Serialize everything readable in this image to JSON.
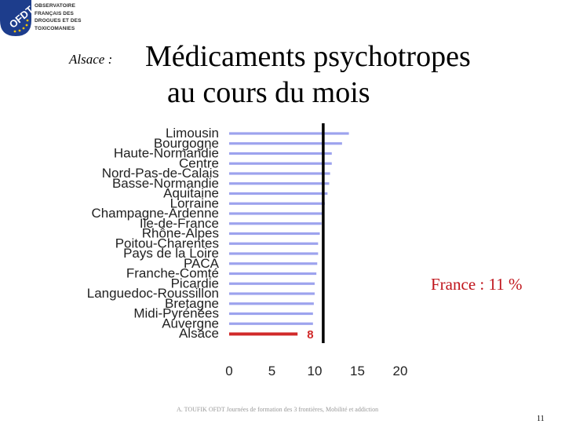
{
  "logo": {
    "badge_text": "OFDT",
    "lines": [
      "OBSERVATOIRE",
      "FRANÇAIS DES",
      "DROGUES ET DES",
      "TOXICOMANIES"
    ]
  },
  "region_label": "Alsace :",
  "title": {
    "line1": "Médicaments psychotropes",
    "line2": "au cours du mois"
  },
  "annotation": "France : 11 %",
  "footer_credit": "A. TOUFIK OFDT Journées de formation des 3 frontières, Mobilité et addiction",
  "page_number": "11",
  "colors": {
    "bar": "#9da3ee",
    "highlight": "#d12a2a",
    "reference_line": "#000000",
    "annotation": "#c0151c"
  },
  "chart_data": {
    "type": "bar",
    "orientation": "horizontal",
    "categories": [
      "Limousin",
      "Bourgogne",
      "Haute-Normandie",
      "Centre",
      "Nord-Pas-de-Calais",
      "Basse-Normandie",
      "Aquitaine",
      "Lorraine",
      "Champagne-Ardenne",
      "Ile-de-France",
      "Rhône-Alpes",
      "Poitou-Charentes",
      "Pays de la Loire",
      "PACA",
      "Franche-Comté",
      "Picardie",
      "Languedoc-Roussillon",
      "Bretagne",
      "Midi-Pyrénées",
      "Auvergne",
      "Alsace"
    ],
    "values": [
      14.0,
      13.2,
      12.0,
      12.0,
      11.8,
      11.7,
      11.5,
      11.2,
      11.0,
      10.8,
      10.6,
      10.4,
      10.4,
      10.3,
      10.2,
      10.0,
      10.0,
      9.9,
      9.8,
      9.8,
      8.0
    ],
    "highlight_category": "Alsace",
    "highlight_label": "8",
    "reference_value": 11,
    "xlim": [
      0,
      20
    ],
    "xticks": [
      "0",
      "5",
      "10",
      "15",
      "20"
    ],
    "grid": false,
    "legend": false
  }
}
